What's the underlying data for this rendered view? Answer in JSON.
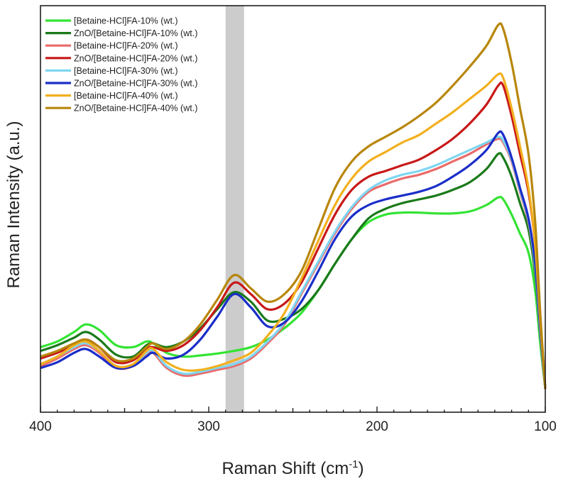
{
  "chart_data": {
    "type": "line",
    "title": "",
    "xlabel": "Raman Shift (cm",
    "xlabel_sup": "-1",
    "xlabel_close": ")",
    "ylabel": "Raman Intensity (a.u.)",
    "xlim": [
      400,
      100
    ],
    "ylim": [
      0,
      100
    ],
    "x_ticks": [
      400,
      300,
      200,
      100
    ],
    "x_tick_labels": [
      "400",
      "300",
      "200",
      "100"
    ],
    "highlight_band": [
      290,
      279
    ],
    "legend_position": "top-left",
    "series": [
      {
        "name": "[Betaine-HCl]FA-10% (wt.)",
        "color": "#33e433",
        "x": [
          400,
          390,
          380,
          373,
          365,
          355,
          345,
          337,
          333,
          325,
          315,
          305,
          295,
          285,
          275,
          265,
          255,
          245,
          235,
          225,
          215,
          205,
          195,
          185,
          175,
          165,
          155,
          145,
          135,
          128,
          125,
          120,
          115,
          110,
          106,
          103,
          100
        ],
        "y": [
          11,
          12.5,
          15,
          17,
          15.5,
          11.5,
          11,
          12.5,
          12,
          9.5,
          8.5,
          8.8,
          9.3,
          10,
          11,
          13,
          16,
          20,
          26,
          33,
          39.5,
          44,
          46,
          46.5,
          46.5,
          46.3,
          46.3,
          46.8,
          48.5,
          50.5,
          50,
          46,
          41,
          36,
          26,
          12,
          0
        ]
      },
      {
        "name": "ZnO/[Betaine-HCl]FA-10% (wt.)",
        "color": "#1a7a1a",
        "x": [
          400,
          390,
          380,
          373,
          365,
          355,
          345,
          337,
          333,
          325,
          315,
          305,
          295,
          285,
          275,
          265,
          255,
          245,
          235,
          225,
          215,
          205,
          195,
          185,
          175,
          165,
          155,
          145,
          135,
          128,
          125,
          120,
          115,
          110,
          106,
          103,
          100
        ],
        "y": [
          10,
          11.5,
          13.5,
          15,
          13,
          9,
          8.5,
          11.5,
          12,
          11,
          12.5,
          16,
          21,
          25.5,
          23,
          18,
          18.5,
          21,
          26,
          33,
          39.5,
          45,
          47.5,
          49,
          50,
          51,
          52.5,
          54.5,
          58,
          62,
          61,
          56,
          49,
          42,
          30,
          14,
          0
        ]
      },
      {
        "name": "[Betaine-HCl]FA-20% (wt.)",
        "color": "#ea6a6a",
        "x": [
          400,
          390,
          380,
          373,
          365,
          355,
          345,
          337,
          333,
          325,
          315,
          305,
          295,
          285,
          275,
          265,
          255,
          245,
          235,
          225,
          215,
          205,
          195,
          185,
          175,
          165,
          155,
          145,
          135,
          128,
          125,
          120,
          115,
          110,
          106,
          103,
          100
        ],
        "y": [
          6,
          8,
          10.5,
          11.5,
          9.5,
          5.5,
          6,
          9,
          9.5,
          5.5,
          3.5,
          4,
          5,
          6,
          8,
          12,
          17,
          25,
          33,
          41,
          47.5,
          52,
          54,
          55.5,
          56.5,
          58,
          60,
          62,
          64.5,
          66,
          65,
          60,
          52,
          44,
          32,
          15,
          0
        ]
      },
      {
        "name": "ZnO/[Betaine-HCl]FA-20% (wt.)",
        "color": "#c81818",
        "x": [
          400,
          390,
          380,
          373,
          365,
          355,
          345,
          337,
          333,
          325,
          315,
          305,
          295,
          285,
          275,
          265,
          255,
          245,
          235,
          225,
          215,
          205,
          195,
          185,
          175,
          165,
          155,
          145,
          135,
          128,
          125,
          120,
          115,
          110,
          106,
          103,
          100
        ],
        "y": [
          8,
          9.5,
          11.5,
          13,
          11,
          7,
          7.5,
          10.5,
          11,
          10,
          11.5,
          15.5,
          21.5,
          28,
          25,
          21,
          22.5,
          28,
          37,
          46,
          52.5,
          56,
          57.5,
          59,
          60.5,
          63,
          66,
          70,
          75,
          80,
          80,
          72,
          62,
          52,
          38,
          18,
          0
        ]
      },
      {
        "name": "[Betaine-HCl]FA-30% (wt.)",
        "color": "#7fd6f0",
        "x": [
          400,
          390,
          380,
          373,
          365,
          355,
          345,
          337,
          333,
          325,
          315,
          305,
          295,
          285,
          275,
          265,
          255,
          245,
          235,
          225,
          215,
          205,
          195,
          185,
          175,
          165,
          155,
          145,
          135,
          128,
          125,
          120,
          115,
          110,
          106,
          103,
          100
        ],
        "y": [
          6.5,
          8.5,
          11,
          12,
          10,
          6,
          6.5,
          9.5,
          10,
          6,
          4,
          4.5,
          5.5,
          6.5,
          8.5,
          12.5,
          17.5,
          25.5,
          33.5,
          41.5,
          48,
          52.5,
          55,
          56.5,
          57.5,
          59,
          61,
          63,
          65,
          66.5,
          65.5,
          60.5,
          52.5,
          44.5,
          32,
          15,
          0
        ]
      },
      {
        "name": "ZnO/[Betaine-HCl]FA-30% (wt.)",
        "color": "#1a2ec8",
        "x": [
          400,
          390,
          380,
          373,
          365,
          355,
          345,
          337,
          333,
          325,
          315,
          305,
          295,
          285,
          275,
          265,
          255,
          245,
          235,
          225,
          215,
          205,
          195,
          185,
          175,
          165,
          155,
          145,
          135,
          128,
          125,
          120,
          115,
          110,
          106,
          103,
          100
        ],
        "y": [
          5.5,
          7,
          9.5,
          10.5,
          8.5,
          5.5,
          6,
          8.5,
          9.5,
          8,
          9,
          13,
          19,
          25,
          21.5,
          16.5,
          17.5,
          23,
          31,
          39.5,
          45.5,
          48.5,
          50,
          51,
          52,
          53.5,
          56,
          59,
          63,
          67.5,
          67,
          61,
          53,
          45,
          33,
          16,
          0
        ]
      },
      {
        "name": "[Betaine-HCl]FA-40% (wt.)",
        "color": "#f2b01e",
        "x": [
          400,
          390,
          380,
          373,
          365,
          355,
          345,
          337,
          333,
          325,
          315,
          305,
          295,
          285,
          275,
          265,
          255,
          245,
          235,
          225,
          215,
          205,
          195,
          185,
          175,
          165,
          155,
          145,
          135,
          128,
          125,
          120,
          115,
          110,
          106,
          103,
          100
        ],
        "y": [
          6.5,
          8.5,
          11.5,
          12.5,
          10,
          6,
          6.5,
          10,
          10.5,
          7,
          5,
          5,
          6,
          7.5,
          9.5,
          14,
          20,
          29,
          39,
          48.5,
          55.5,
          60,
          62.5,
          65,
          67,
          70,
          73,
          76.5,
          80,
          83,
          82,
          74,
          64,
          53,
          38,
          18,
          0
        ]
      },
      {
        "name": "ZnO/[Betaine-HCl]FA-40% (wt.)",
        "color": "#b8860b",
        "x": [
          400,
          390,
          380,
          373,
          365,
          355,
          345,
          337,
          333,
          325,
          315,
          305,
          295,
          285,
          275,
          265,
          255,
          245,
          235,
          225,
          215,
          205,
          195,
          185,
          175,
          165,
          155,
          145,
          135,
          128,
          125,
          120,
          115,
          110,
          106,
          103,
          100
        ],
        "y": [
          8.5,
          10,
          12,
          13,
          11,
          7.5,
          8,
          11,
          12,
          10.5,
          12.5,
          17,
          23.5,
          30,
          26.5,
          23,
          25,
          31,
          42,
          53,
          60,
          64,
          66.5,
          69,
          72,
          75.5,
          80,
          85,
          90.5,
          96,
          95,
          86,
          74,
          62,
          44,
          20,
          0
        ]
      }
    ]
  }
}
